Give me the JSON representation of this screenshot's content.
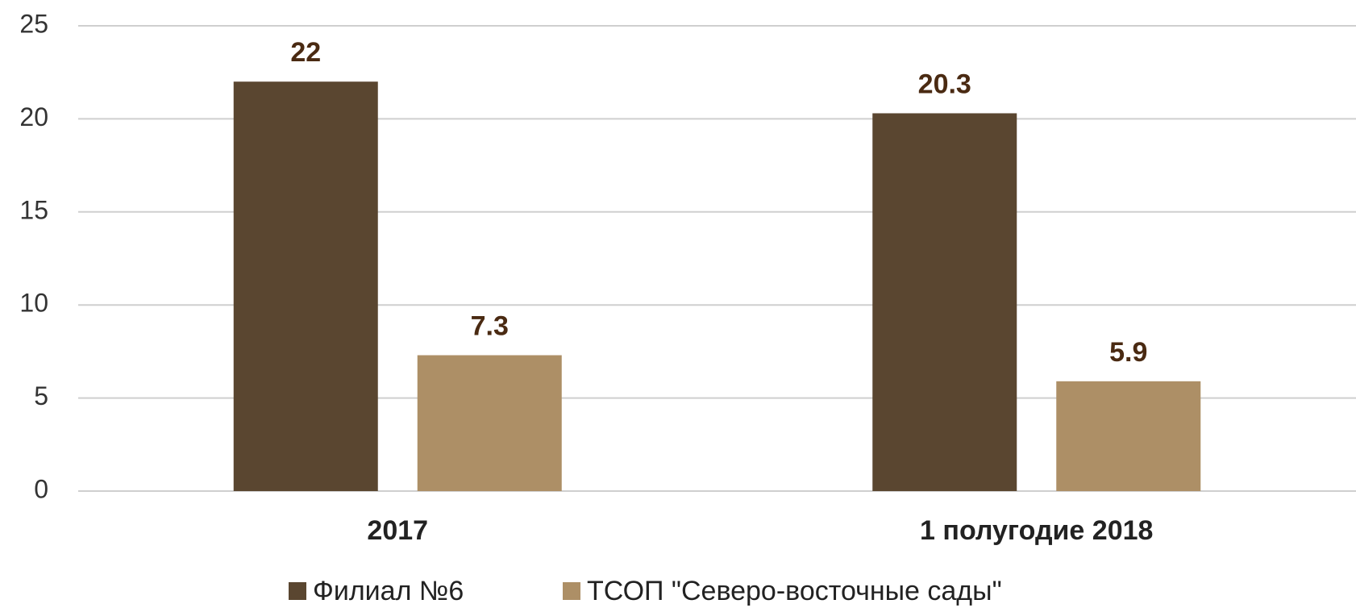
{
  "chart_data": {
    "type": "bar",
    "categories": [
      "2017",
      "1 полугодие 2018"
    ],
    "series": [
      {
        "name": "Филиал №6",
        "color": "#5a4630",
        "values": [
          22,
          20.3
        ]
      },
      {
        "name": "ТСОП \"Северо-восточные сады\"",
        "color": "#ad8f66",
        "values": [
          7.3,
          5.9
        ]
      }
    ],
    "ylim": [
      0,
      25
    ],
    "yticks": [
      0,
      5,
      10,
      15,
      20,
      25
    ],
    "grid": true,
    "legend": "bottom"
  }
}
